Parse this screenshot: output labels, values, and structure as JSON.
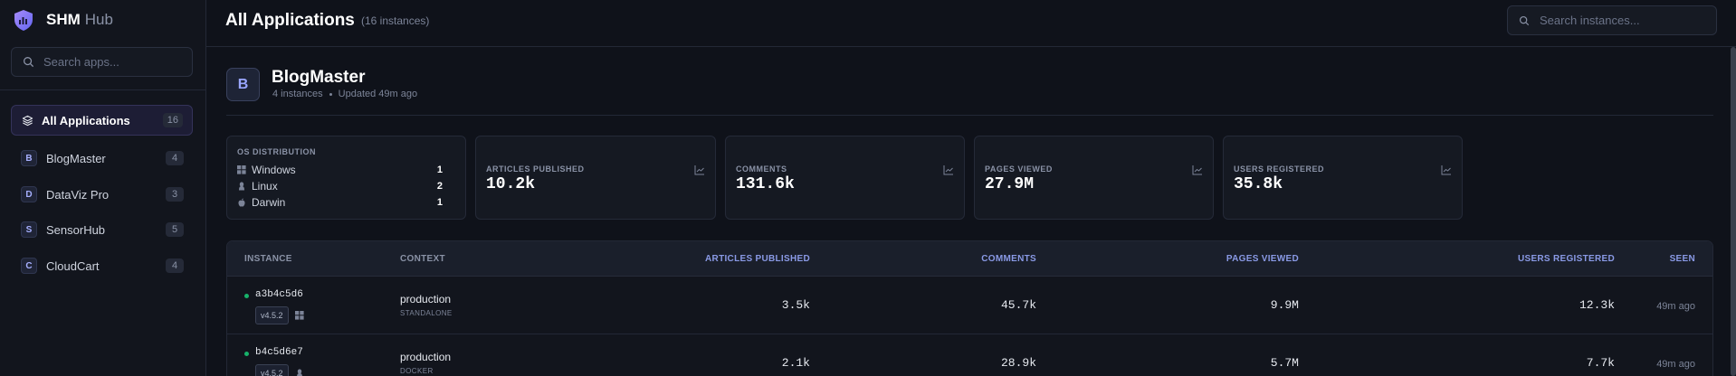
{
  "brand": {
    "name": "SHM",
    "suffix": "Hub"
  },
  "sidebar": {
    "search_placeholder": "Search apps...",
    "all_label": "All Applications",
    "all_count": "16",
    "items": [
      {
        "letter": "B",
        "label": "BlogMaster",
        "count": "4"
      },
      {
        "letter": "D",
        "label": "DataViz Pro",
        "count": "3"
      },
      {
        "letter": "S",
        "label": "SensorHub",
        "count": "5"
      },
      {
        "letter": "C",
        "label": "CloudCart",
        "count": "4"
      }
    ]
  },
  "header": {
    "title": "All Applications",
    "count": "(16 instances)",
    "search_placeholder": "Search instances..."
  },
  "app": {
    "letter": "B",
    "name": "BlogMaster",
    "instances": "4 instances",
    "updated": "Updated 49m ago"
  },
  "os_card": {
    "label": "OS DISTRIBUTION",
    "rows": [
      {
        "icon": "windows-icon",
        "name": "Windows",
        "count": "1"
      },
      {
        "icon": "linux-icon",
        "name": "Linux",
        "count": "2"
      },
      {
        "icon": "apple-icon",
        "name": "Darwin",
        "count": "1"
      }
    ]
  },
  "metrics": [
    {
      "label": "ARTICLES PUBLISHED",
      "value": "10.2k"
    },
    {
      "label": "COMMENTS",
      "value": "131.6k"
    },
    {
      "label": "PAGES VIEWED",
      "value": "27.9M"
    },
    {
      "label": "USERS REGISTERED",
      "value": "35.8k"
    }
  ],
  "table": {
    "headers": [
      "INSTANCE",
      "CONTEXT",
      "ARTICLES PUBLISHED",
      "COMMENTS",
      "PAGES VIEWED",
      "USERS REGISTERED",
      "SEEN"
    ],
    "rows": [
      {
        "id": "a3b4c5d6",
        "version": "v4.5.2",
        "os_icon": "windows-icon",
        "context": "production",
        "mode": "STANDALONE",
        "articles": "3.5k",
        "comments": "45.7k",
        "pages": "9.9M",
        "users": "12.3k",
        "seen": "49m ago"
      },
      {
        "id": "b4c5d6e7",
        "version": "v4.5.2",
        "os_icon": "linux-icon",
        "context": "production",
        "mode": "DOCKER",
        "articles": "2.1k",
        "comments": "28.9k",
        "pages": "5.7M",
        "users": "7.7k",
        "seen": "49m ago"
      }
    ]
  },
  "colors": {
    "accent": "#8b7cf6",
    "status_online": "#17b26a"
  }
}
